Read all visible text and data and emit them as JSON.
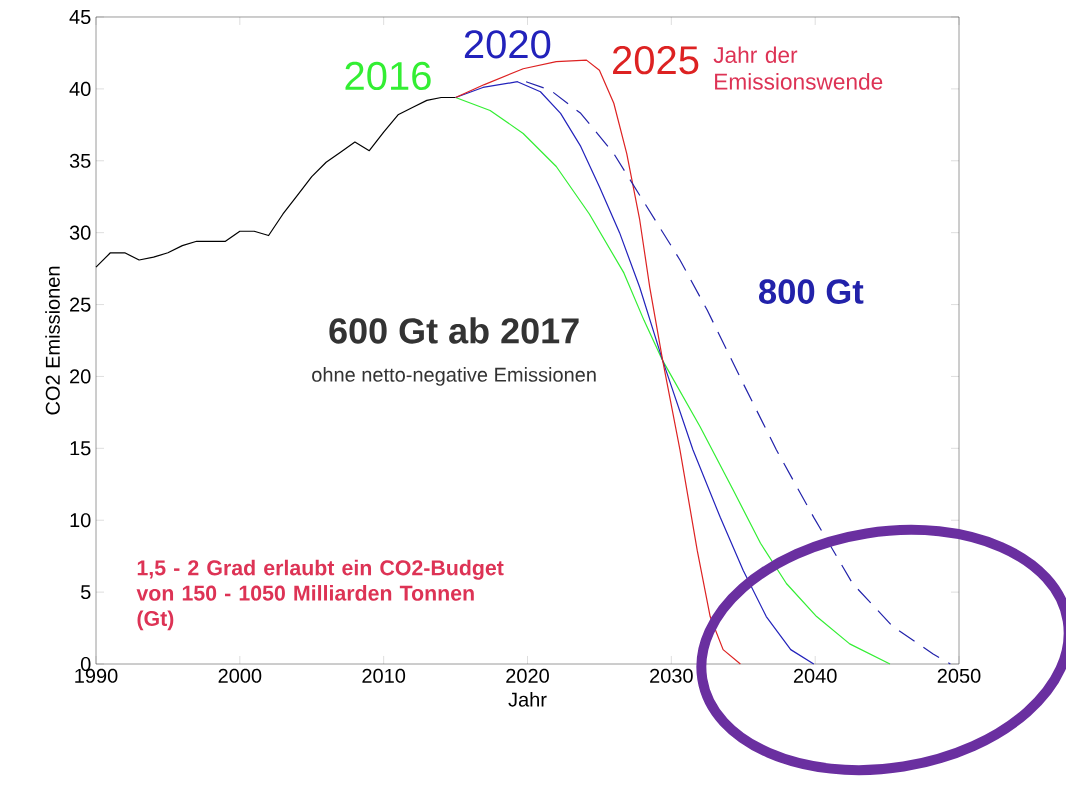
{
  "chart_data": {
    "type": "line",
    "xlabel": "Jahr",
    "ylabel": "CO2 Emissionen",
    "xlim": [
      1990,
      2050
    ],
    "ylim": [
      0,
      45
    ],
    "xticks": [
      1990,
      2000,
      2010,
      2020,
      2030,
      2040,
      2050
    ],
    "yticks": [
      0,
      5,
      10,
      15,
      20,
      25,
      30,
      35,
      40,
      45
    ],
    "series": [
      {
        "color": "#000000",
        "x": [
          1990,
          1991,
          1992,
          1993,
          1994,
          1995,
          1996,
          1997,
          1998,
          1999,
          2000,
          2001,
          2002,
          2003,
          2004,
          2005,
          2006,
          2007,
          2008,
          2009,
          2010,
          2011,
          2012,
          2013,
          2014,
          2015
        ],
        "values": [
          27.6,
          28.6,
          28.6,
          28.1,
          28.3,
          28.6,
          29.1,
          29.4,
          29.4,
          29.4,
          30.1,
          30.1,
          29.8,
          31.3,
          32.6,
          33.9,
          34.9,
          35.6,
          36.3,
          35.7,
          37.0,
          38.2,
          38.7,
          39.2,
          39.4,
          39.4
        ]
      },
      {
        "name": "2016",
        "color": "#33ee33",
        "x": [
          2015,
          2017.4,
          2019.7,
          2022.0,
          2024.3,
          2026.7,
          2028.1,
          2029.4,
          2032.0,
          2034.3,
          2036.2,
          2038.0,
          2040.1,
          2042.4,
          2045.2
        ],
        "values": [
          39.4,
          38.5,
          36.9,
          34.6,
          31.3,
          27.2,
          23.9,
          21.1,
          16.5,
          12.1,
          8.4,
          5.6,
          3.3,
          1.4,
          0
        ]
      },
      {
        "name": "2020",
        "color": "#2222bb",
        "x": [
          2015,
          2016.9,
          2019.3,
          2020.9,
          2022.3,
          2023.7,
          2025.0,
          2026.4,
          2027.8,
          2029.4,
          2031.5,
          2033.4,
          2035.0,
          2036.6,
          2038.3,
          2039.9
        ],
        "values": [
          39.4,
          40.1,
          40.5,
          39.8,
          38.3,
          36.0,
          33.2,
          30.0,
          26.2,
          21.1,
          14.9,
          10.2,
          6.5,
          3.3,
          1.0,
          0
        ]
      },
      {
        "name": "2025",
        "color": "#dd2222",
        "x": [
          2015,
          2017.0,
          2019.7,
          2022.0,
          2024.1,
          2025.0,
          2026.0,
          2026.9,
          2027.8,
          2028.5,
          2029.4,
          2030.6,
          2031.8,
          2032.7,
          2033.6,
          2034.8
        ],
        "values": [
          39.4,
          40.3,
          41.4,
          41.9,
          42.0,
          41.3,
          39.0,
          35.5,
          30.9,
          26.2,
          21.1,
          14.9,
          7.9,
          3.3,
          1.0,
          0
        ]
      },
      {
        "name": "800 Gt",
        "color": "#2222aa",
        "line_style": "dashed",
        "x": [
          2019.9,
          2021.6,
          2023.7,
          2026.0,
          2028.3,
          2030.6,
          2032.5,
          2035.0,
          2037.3,
          2039.9,
          2042.6,
          2045.4,
          2048.2,
          2049.4
        ],
        "values": [
          40.5,
          39.9,
          38.3,
          35.5,
          31.8,
          28.1,
          24.6,
          19.5,
          14.9,
          10.2,
          5.6,
          2.6,
          0.7,
          0
        ]
      }
    ],
    "annotations": [
      "Jahr der Emissionswende",
      "600 Gt ab 2017",
      "ohne netto-negative Emissionen",
      "1,5 - 2 Grad erlaubt ein CO2-Budget von 150 - 1050 Milliarden Tonnen (Gt)"
    ]
  }
}
